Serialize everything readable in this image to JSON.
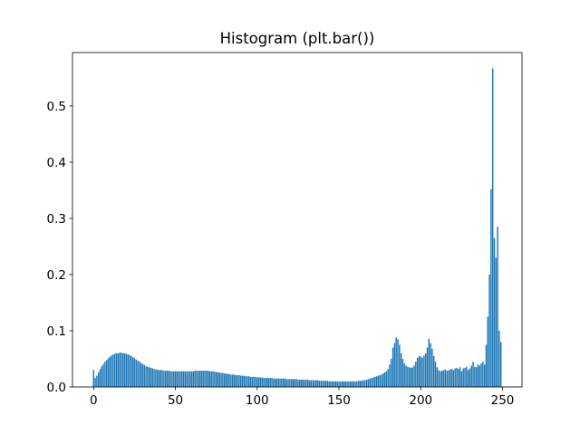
{
  "chart_data": {
    "type": "bar",
    "title": "Histogram (plt.bar())",
    "color": "#1f77b4",
    "bar_width": 0.8,
    "x": [
      0,
      1,
      2,
      3,
      4,
      5,
      6,
      7,
      8,
      9,
      10,
      11,
      12,
      13,
      14,
      15,
      16,
      17,
      18,
      19,
      20,
      21,
      22,
      23,
      24,
      25,
      26,
      27,
      28,
      29,
      30,
      31,
      32,
      33,
      34,
      35,
      36,
      37,
      38,
      39,
      40,
      41,
      42,
      43,
      44,
      45,
      46,
      47,
      48,
      49,
      50,
      51,
      52,
      53,
      54,
      55,
      56,
      57,
      58,
      59,
      60,
      61,
      62,
      63,
      64,
      65,
      66,
      67,
      68,
      69,
      70,
      71,
      72,
      73,
      74,
      75,
      76,
      77,
      78,
      79,
      80,
      81,
      82,
      83,
      84,
      85,
      86,
      87,
      88,
      89,
      90,
      91,
      92,
      93,
      94,
      95,
      96,
      97,
      98,
      99,
      100,
      101,
      102,
      103,
      104,
      105,
      106,
      107,
      108,
      109,
      110,
      111,
      112,
      113,
      114,
      115,
      116,
      117,
      118,
      119,
      120,
      121,
      122,
      123,
      124,
      125,
      126,
      127,
      128,
      129,
      130,
      131,
      132,
      133,
      134,
      135,
      136,
      137,
      138,
      139,
      140,
      141,
      142,
      143,
      144,
      145,
      146,
      147,
      148,
      149,
      150,
      151,
      152,
      153,
      154,
      155,
      156,
      157,
      158,
      159,
      160,
      161,
      162,
      163,
      164,
      165,
      166,
      167,
      168,
      169,
      170,
      171,
      172,
      173,
      174,
      175,
      176,
      177,
      178,
      179,
      180,
      181,
      182,
      183,
      184,
      185,
      186,
      187,
      188,
      189,
      190,
      191,
      192,
      193,
      194,
      195,
      196,
      197,
      198,
      199,
      200,
      201,
      202,
      203,
      204,
      205,
      206,
      207,
      208,
      209,
      210,
      211,
      212,
      213,
      214,
      215,
      216,
      217,
      218,
      219,
      220,
      221,
      222,
      223,
      224,
      225,
      226,
      227,
      228,
      229,
      230,
      231,
      232,
      233,
      234,
      235,
      236,
      237,
      238,
      239,
      240,
      241,
      242,
      243,
      244,
      245,
      246,
      247,
      248,
      249
    ],
    "values": [
      0.03,
      0.016,
      0.02,
      0.026,
      0.032,
      0.037,
      0.041,
      0.045,
      0.048,
      0.051,
      0.054,
      0.056,
      0.058,
      0.059,
      0.06,
      0.06,
      0.061,
      0.061,
      0.06,
      0.06,
      0.059,
      0.058,
      0.057,
      0.055,
      0.053,
      0.051,
      0.049,
      0.047,
      0.045,
      0.043,
      0.041,
      0.039,
      0.037,
      0.036,
      0.035,
      0.034,
      0.033,
      0.032,
      0.031,
      0.031,
      0.03,
      0.03,
      0.03,
      0.029,
      0.029,
      0.029,
      0.029,
      0.028,
      0.028,
      0.028,
      0.028,
      0.028,
      0.028,
      0.028,
      0.028,
      0.028,
      0.028,
      0.028,
      0.028,
      0.028,
      0.028,
      0.028,
      0.029,
      0.029,
      0.029,
      0.029,
      0.029,
      0.029,
      0.029,
      0.029,
      0.029,
      0.028,
      0.028,
      0.028,
      0.027,
      0.027,
      0.026,
      0.026,
      0.025,
      0.025,
      0.024,
      0.024,
      0.023,
      0.023,
      0.022,
      0.022,
      0.022,
      0.021,
      0.021,
      0.021,
      0.02,
      0.02,
      0.02,
      0.019,
      0.019,
      0.019,
      0.018,
      0.018,
      0.018,
      0.018,
      0.017,
      0.017,
      0.017,
      0.017,
      0.016,
      0.016,
      0.016,
      0.016,
      0.016,
      0.016,
      0.015,
      0.015,
      0.015,
      0.015,
      0.015,
      0.015,
      0.015,
      0.015,
      0.014,
      0.014,
      0.014,
      0.014,
      0.014,
      0.014,
      0.014,
      0.013,
      0.013,
      0.013,
      0.013,
      0.013,
      0.013,
      0.013,
      0.012,
      0.012,
      0.012,
      0.012,
      0.012,
      0.012,
      0.011,
      0.011,
      0.011,
      0.011,
      0.011,
      0.011,
      0.01,
      0.01,
      0.01,
      0.01,
      0.01,
      0.01,
      0.01,
      0.01,
      0.01,
      0.01,
      0.01,
      0.01,
      0.01,
      0.01,
      0.01,
      0.01,
      0.01,
      0.01,
      0.011,
      0.011,
      0.011,
      0.012,
      0.012,
      0.013,
      0.014,
      0.015,
      0.016,
      0.017,
      0.018,
      0.019,
      0.02,
      0.021,
      0.022,
      0.024,
      0.026,
      0.028,
      0.032,
      0.04,
      0.05,
      0.07,
      0.078,
      0.088,
      0.085,
      0.075,
      0.06,
      0.05,
      0.042,
      0.038,
      0.036,
      0.035,
      0.034,
      0.035,
      0.038,
      0.045,
      0.052,
      0.055,
      0.054,
      0.052,
      0.056,
      0.06,
      0.07,
      0.086,
      0.078,
      0.068,
      0.055,
      0.045,
      0.035,
      0.03,
      0.028,
      0.029,
      0.03,
      0.031,
      0.029,
      0.03,
      0.031,
      0.032,
      0.03,
      0.033,
      0.034,
      0.032,
      0.035,
      0.028,
      0.033,
      0.034,
      0.036,
      0.03,
      0.033,
      0.038,
      0.045,
      0.036,
      0.035,
      0.04,
      0.038,
      0.042,
      0.045,
      0.04,
      0.075,
      0.125,
      0.2,
      0.352,
      0.567,
      0.265,
      0.23,
      0.285,
      0.1,
      0.08
    ],
    "xlim": [
      -12.9,
      261.9
    ],
    "ylim": [
      0,
      0.595
    ],
    "xticks": [
      0,
      50,
      100,
      150,
      200,
      250
    ],
    "yticks": [
      {
        "value": 0,
        "label": "0.0"
      },
      {
        "value": 0.1,
        "label": "0.1"
      },
      {
        "value": 0.2,
        "label": "0.2"
      },
      {
        "value": 0.3,
        "label": "0.3"
      },
      {
        "value": 0.4,
        "label": "0.4"
      },
      {
        "value": 0.5,
        "label": "0.5"
      }
    ]
  }
}
